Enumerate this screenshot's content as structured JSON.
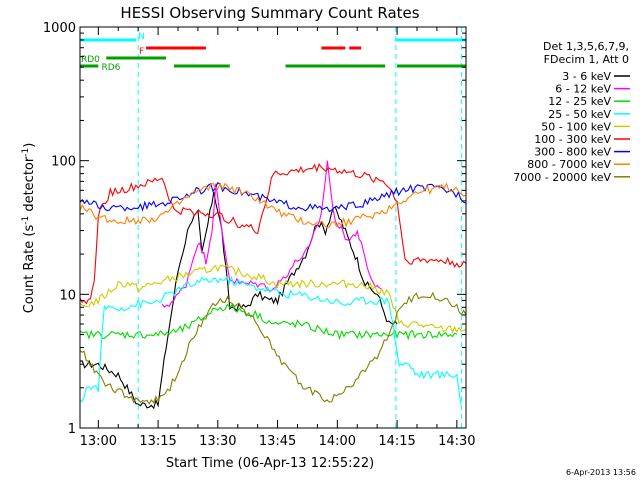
{
  "chart_data": {
    "type": "line",
    "title": "HESSI Observing Summary Count Rates",
    "xlabel": "Start Time (06-Apr-13 12:55:22)",
    "ylabel_main": "Count Rate (s",
    "ylabel_sup1": "-1",
    "ylabel_mid": " detector",
    "ylabel_sup2": "-1",
    "ylabel_end": ")",
    "y_scale": "log",
    "ylim": [
      1,
      1000
    ],
    "xlim_minutes": [
      -4.6,
      92.3
    ],
    "x_ticks": [
      {
        "label": "13:00",
        "minutes": 0
      },
      {
        "label": "13:15",
        "minutes": 15
      },
      {
        "label": "13:30",
        "minutes": 30
      },
      {
        "label": "13:45",
        "minutes": 45
      },
      {
        "label": "14:00",
        "minutes": 60
      },
      {
        "label": "14:15",
        "minutes": 75
      },
      {
        "label": "14:30",
        "minutes": 90
      }
    ],
    "y_ticks": [
      {
        "label": "1",
        "value": 1
      },
      {
        "label": "10",
        "value": 10
      },
      {
        "label": "100",
        "value": 100
      },
      {
        "label": "1000",
        "value": 1000
      }
    ],
    "legend_header": [
      "Det 1,3,5,6,7,9,",
      "FDecim 1, Att 0"
    ],
    "series": [
      {
        "name": "3 - 6 keV",
        "color": "#000000",
        "points": [
          [
            -4.6,
            3
          ],
          [
            0,
            3
          ],
          [
            5,
            2.5
          ],
          [
            10,
            1.5
          ],
          [
            15,
            1.5
          ],
          [
            17,
            4
          ],
          [
            20,
            15
          ],
          [
            23,
            35
          ],
          [
            25,
            40
          ],
          [
            26,
            20
          ],
          [
            28,
            40
          ],
          [
            29,
            60
          ],
          [
            31,
            30
          ],
          [
            33,
            8
          ],
          [
            37,
            8
          ],
          [
            40,
            10
          ],
          [
            43,
            9
          ],
          [
            45,
            9
          ],
          [
            48,
            13
          ],
          [
            52,
            20
          ],
          [
            55,
            35
          ],
          [
            57,
            30
          ],
          [
            59,
            45
          ],
          [
            61,
            35
          ],
          [
            63,
            25
          ],
          [
            65,
            18
          ],
          [
            67,
            12
          ],
          [
            70,
            10
          ],
          [
            73,
            6
          ],
          [
            75,
            6
          ]
        ]
      },
      {
        "name": "6 - 12 keV",
        "color": "#ff00ff",
        "points": [
          [
            16,
            8
          ],
          [
            19,
            9
          ],
          [
            22,
            12
          ],
          [
            25,
            25
          ],
          [
            27,
            18
          ],
          [
            28.5,
            30
          ],
          [
            29.5,
            65
          ],
          [
            31,
            30
          ],
          [
            33,
            13
          ],
          [
            36,
            12
          ],
          [
            40,
            12
          ],
          [
            44,
            11
          ],
          [
            47,
            14
          ],
          [
            50,
            18
          ],
          [
            53,
            22
          ],
          [
            56,
            40
          ],
          [
            57.5,
            100
          ],
          [
            59,
            40
          ],
          [
            61,
            30
          ],
          [
            63,
            25
          ],
          [
            65,
            30
          ],
          [
            67,
            18
          ],
          [
            69,
            12
          ],
          [
            71,
            11
          ]
        ]
      },
      {
        "name": "12 - 25 keV",
        "color": "#00dd00",
        "points": [
          [
            -4.6,
            5
          ],
          [
            5,
            5
          ],
          [
            10,
            5
          ],
          [
            15,
            5
          ],
          [
            20,
            5.3
          ],
          [
            24,
            6
          ],
          [
            27,
            7
          ],
          [
            30,
            8
          ],
          [
            33,
            8
          ],
          [
            36,
            7.5
          ],
          [
            40,
            7
          ],
          [
            44,
            6
          ],
          [
            47,
            6
          ],
          [
            50,
            6
          ],
          [
            55,
            5.5
          ],
          [
            60,
            5
          ],
          [
            65,
            5
          ],
          [
            70,
            5
          ],
          [
            75,
            5
          ],
          [
            80,
            5
          ],
          [
            85,
            5
          ],
          [
            90,
            5
          ]
        ]
      },
      {
        "name": "25 - 50 keV",
        "color": "#00ffff",
        "points": [
          [
            -4.6,
            1.5
          ],
          [
            -3,
            2
          ],
          [
            0,
            2
          ],
          [
            1.5,
            8
          ],
          [
            4,
            8
          ],
          [
            7,
            8
          ],
          [
            10,
            8.5
          ],
          [
            13,
            8.5
          ],
          [
            15,
            9
          ],
          [
            18,
            10
          ],
          [
            22,
            11.5
          ],
          [
            26,
            12.5
          ],
          [
            30,
            13
          ],
          [
            34,
            12.5
          ],
          [
            38,
            11.5
          ],
          [
            42,
            11
          ],
          [
            44,
            10.5
          ],
          [
            46,
            10
          ],
          [
            50,
            10
          ],
          [
            54,
            9.5
          ],
          [
            58,
            9
          ],
          [
            62,
            8.5
          ],
          [
            66,
            9
          ],
          [
            70,
            9
          ],
          [
            73,
            9
          ],
          [
            75.5,
            3
          ],
          [
            78,
            3
          ],
          [
            80,
            2.5
          ],
          [
            84,
            2.5
          ],
          [
            88,
            2.5
          ],
          [
            90,
            2.5
          ],
          [
            91,
            1.5
          ]
        ]
      },
      {
        "name": "50 - 100 keV",
        "color": "#cccc00",
        "points": [
          [
            -4.6,
            8
          ],
          [
            0,
            9
          ],
          [
            2,
            10
          ],
          [
            5,
            12
          ],
          [
            8,
            12
          ],
          [
            10,
            11
          ],
          [
            14,
            12
          ],
          [
            18,
            13
          ],
          [
            22,
            14
          ],
          [
            26,
            15
          ],
          [
            30,
            16
          ],
          [
            34,
            15
          ],
          [
            38,
            14
          ],
          [
            42,
            13
          ],
          [
            44,
            12
          ],
          [
            46,
            12
          ],
          [
            50,
            12
          ],
          [
            55,
            12
          ],
          [
            60,
            12
          ],
          [
            65,
            12
          ],
          [
            70,
            11
          ],
          [
            73,
            10
          ],
          [
            75.5,
            6
          ],
          [
            80,
            6
          ],
          [
            85,
            5.5
          ],
          [
            90,
            5.5
          ],
          [
            92.3,
            5.5
          ]
        ]
      },
      {
        "name": "100 - 300 keV",
        "color": "#ff0000",
        "points": [
          [
            -4.6,
            10
          ],
          [
            -3,
            8
          ],
          [
            -1,
            12
          ],
          [
            0,
            40
          ],
          [
            3,
            58
          ],
          [
            6,
            60
          ],
          [
            10,
            65
          ],
          [
            13,
            68
          ],
          [
            16,
            75
          ],
          [
            19,
            42
          ],
          [
            23,
            42
          ],
          [
            28,
            40
          ],
          [
            31,
            38
          ],
          [
            35,
            34
          ],
          [
            40,
            30
          ],
          [
            44,
            80
          ],
          [
            48,
            82
          ],
          [
            52,
            86
          ],
          [
            56,
            90
          ],
          [
            60,
            85
          ],
          [
            64,
            80
          ],
          [
            68,
            75
          ],
          [
            72,
            70
          ],
          [
            75,
            50
          ],
          [
            77,
            18
          ],
          [
            82,
            18
          ],
          [
            86,
            18
          ],
          [
            90,
            17
          ],
          [
            92.3,
            17
          ]
        ]
      },
      {
        "name": "300 - 800 keV",
        "color": "#0000ff",
        "points": [
          [
            -4.6,
            52
          ],
          [
            0,
            45
          ],
          [
            5,
            44
          ],
          [
            10,
            45
          ],
          [
            15,
            47
          ],
          [
            18,
            50
          ],
          [
            21,
            54
          ],
          [
            24,
            58
          ],
          [
            27,
            62
          ],
          [
            30,
            64
          ],
          [
            33,
            62
          ],
          [
            36,
            58
          ],
          [
            40,
            54
          ],
          [
            43,
            50
          ],
          [
            46,
            48
          ],
          [
            49,
            46
          ],
          [
            52,
            45
          ],
          [
            55,
            44
          ],
          [
            58,
            43
          ],
          [
            61,
            44
          ],
          [
            64,
            46
          ],
          [
            67,
            48
          ],
          [
            70,
            52
          ],
          [
            73,
            56
          ],
          [
            76,
            60
          ],
          [
            79,
            62
          ],
          [
            82,
            63
          ],
          [
            85,
            62
          ],
          [
            88,
            60
          ],
          [
            91,
            55
          ],
          [
            92.3,
            48
          ]
        ]
      },
      {
        "name": "800 - 7000 keV",
        "color": "#ff8000",
        "points": [
          [
            -4.6,
            45
          ],
          [
            0,
            38
          ],
          [
            5,
            35
          ],
          [
            10,
            36
          ],
          [
            14,
            37
          ],
          [
            18,
            42
          ],
          [
            21,
            50
          ],
          [
            24,
            57
          ],
          [
            27,
            62
          ],
          [
            30,
            65
          ],
          [
            33,
            63
          ],
          [
            36,
            58
          ],
          [
            40,
            52
          ],
          [
            43,
            45
          ],
          [
            46,
            40
          ],
          [
            49,
            37
          ],
          [
            52,
            35
          ],
          [
            55,
            34
          ],
          [
            58,
            33
          ],
          [
            61,
            34
          ],
          [
            64,
            36
          ],
          [
            67,
            38
          ],
          [
            70,
            40
          ],
          [
            73,
            44
          ],
          [
            76,
            50
          ],
          [
            79,
            56
          ],
          [
            82,
            60
          ],
          [
            85,
            62
          ],
          [
            88,
            63
          ],
          [
            91,
            60
          ],
          [
            92.3,
            55
          ]
        ]
      },
      {
        "name": "7000 - 20000 keV",
        "color": "#808000",
        "points": [
          [
            -4.6,
            4
          ],
          [
            -2,
            3
          ],
          [
            0,
            2.5
          ],
          [
            3,
            2
          ],
          [
            6,
            1.8
          ],
          [
            10,
            1.6
          ],
          [
            15,
            1.6
          ],
          [
            18,
            2
          ],
          [
            21,
            3
          ],
          [
            24,
            5
          ],
          [
            27,
            7
          ],
          [
            30,
            9
          ],
          [
            33,
            9
          ],
          [
            36,
            8
          ],
          [
            40,
            6
          ],
          [
            43,
            4.5
          ],
          [
            46,
            3
          ],
          [
            49,
            2.5
          ],
          [
            52,
            2
          ],
          [
            55,
            1.8
          ],
          [
            58,
            1.6
          ],
          [
            61,
            1.8
          ],
          [
            64,
            2.2
          ],
          [
            67,
            2.7
          ],
          [
            70,
            3.5
          ],
          [
            73,
            5
          ],
          [
            75,
            7
          ],
          [
            78,
            9
          ],
          [
            81,
            10
          ],
          [
            84,
            10
          ],
          [
            87,
            9
          ],
          [
            90,
            8
          ],
          [
            92.3,
            7
          ]
        ]
      }
    ],
    "flag_bars": [
      {
        "label": "N",
        "color": "#00ffff",
        "segments": [
          [
            -4.6,
            9.5
          ],
          [
            74.5,
            92.3
          ]
        ]
      },
      {
        "label": "F",
        "color": "#ff0000",
        "segments": [
          [
            12,
            27
          ],
          [
            56,
            62
          ],
          [
            63,
            66
          ]
        ]
      },
      {
        "label": "RD0",
        "color": "#00a000",
        "segments": [
          [
            2,
            17
          ]
        ]
      },
      {
        "label": "RD6",
        "color": "#00a000",
        "segments": [
          [
            -4.6,
            0
          ],
          [
            19,
            33
          ],
          [
            47,
            72
          ],
          [
            75,
            92.3
          ]
        ]
      }
    ],
    "vertical_lines_minutes": [
      10,
      74.7,
      91.2
    ],
    "timestamp": "6-Apr-2013 13:56"
  }
}
